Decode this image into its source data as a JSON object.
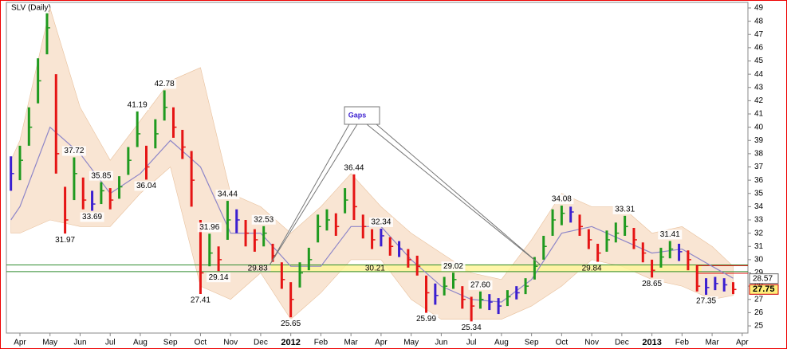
{
  "chart_data": {
    "type": "ohlc",
    "title": "SLV (Daily)",
    "xlim": [
      -0.45,
      24.19
    ],
    "ylim": [
      24.46,
      49.42
    ],
    "yticks": [
      25,
      26,
      27,
      28,
      29,
      30,
      31,
      32,
      33,
      34,
      35,
      36,
      37,
      38,
      39,
      40,
      41,
      42,
      43,
      44,
      45,
      46,
      47,
      48,
      49
    ],
    "xticks": [
      {
        "value": 0,
        "label": "Apr"
      },
      {
        "value": 1,
        "label": "May"
      },
      {
        "value": 2,
        "label": "Jun"
      },
      {
        "value": 3,
        "label": "Jul"
      },
      {
        "value": 4,
        "label": "Aug"
      },
      {
        "value": 5,
        "label": "Sep"
      },
      {
        "value": 6,
        "label": "Oct"
      },
      {
        "value": 7,
        "label": "Nov"
      },
      {
        "value": 8,
        "label": "Dec"
      },
      {
        "value": 9,
        "label": "2012"
      },
      {
        "value": 10,
        "label": "Feb"
      },
      {
        "value": 11,
        "label": "Mar"
      },
      {
        "value": 12,
        "label": "Apr"
      },
      {
        "value": 13,
        "label": "May"
      },
      {
        "value": 14,
        "label": "Jun"
      },
      {
        "value": 15,
        "label": "Jul"
      },
      {
        "value": 16,
        "label": "Aug"
      },
      {
        "value": 17,
        "label": "Sep"
      },
      {
        "value": 18,
        "label": "Oct"
      },
      {
        "value": 19,
        "label": "Nov"
      },
      {
        "value": 20,
        "label": "Dec"
      },
      {
        "value": 21,
        "label": "2013"
      },
      {
        "value": 22,
        "label": "Feb"
      },
      {
        "value": 23,
        "label": "Mar"
      },
      {
        "value": 24,
        "label": "Apr"
      }
    ],
    "up_color": "#1f9a1f",
    "down_color": "#e51414",
    "flat_color": "#3b1fd0",
    "bars": {
      "x": [
        -0.3,
        0,
        0.3,
        0.6,
        0.9,
        1.2,
        1.5,
        1.8,
        2.1,
        2.4,
        2.7,
        3.0,
        3.3,
        3.6,
        3.9,
        4.2,
        4.5,
        4.8,
        5.1,
        5.4,
        5.7,
        6.0,
        6.3,
        6.6,
        6.9,
        7.2,
        7.5,
        7.8,
        8.1,
        8.4,
        8.7,
        9.0,
        9.3,
        9.6,
        9.9,
        10.2,
        10.5,
        10.8,
        11.1,
        11.4,
        11.7,
        12.0,
        12.3,
        12.6,
        12.9,
        13.2,
        13.5,
        13.8,
        14.1,
        14.4,
        14.7,
        15.0,
        15.3,
        15.6,
        15.9,
        16.2,
        16.5,
        16.8,
        17.1,
        17.4,
        17.7,
        18.0,
        18.3,
        18.6,
        18.9,
        19.2,
        19.5,
        19.8,
        20.1,
        20.4,
        20.7,
        21.0,
        21.3,
        21.6,
        21.9,
        22.2,
        22.5,
        22.8,
        23.1,
        23.4,
        23.7
      ],
      "high": [
        37.8,
        38.6,
        41.5,
        45.2,
        48.6,
        44,
        35.5,
        37.72,
        36.2,
        35.2,
        35.85,
        35.4,
        36.3,
        38.5,
        41.19,
        38.6,
        40.6,
        42.78,
        41.5,
        39.8,
        38.2,
        33,
        31.96,
        31,
        34.44,
        33.8,
        33,
        32.3,
        32.53,
        31.2,
        29.8,
        28.3,
        29.8,
        30.9,
        33.4,
        33.8,
        33.5,
        35.4,
        36.44,
        33.4,
        32.3,
        32.34,
        31.7,
        31.4,
        30.8,
        30.3,
        28.8,
        28.2,
        28.7,
        29.02,
        28,
        27.2,
        27.6,
        27.4,
        27.1,
        27.7,
        28,
        28.6,
        30.2,
        31.8,
        33.8,
        34.08,
        34,
        33.4,
        32.3,
        31.2,
        32.2,
        32.8,
        33.31,
        32.4,
        31.3,
        30,
        30.9,
        31.41,
        31.2,
        30.7,
        29.6,
        28.6,
        28.7,
        28.6,
        28.3
      ],
      "low": [
        35.2,
        36.0,
        38.6,
        41.8,
        45.5,
        36.5,
        31.97,
        34.5,
        33.8,
        33.69,
        34.2,
        33.8,
        34.6,
        36.4,
        38.5,
        36.04,
        38.4,
        40.5,
        39.2,
        37.6,
        34,
        27.41,
        29.5,
        29.14,
        31.5,
        32,
        31,
        30.6,
        31,
        29.83,
        27.8,
        25.65,
        27.9,
        29.2,
        31.3,
        32.2,
        31.8,
        33.5,
        33,
        31.6,
        30.8,
        31,
        30.3,
        30.2,
        29.4,
        28.8,
        25.99,
        26.6,
        27.3,
        27.8,
        26.3,
        25.34,
        26.3,
        26.2,
        25.9,
        26.5,
        27,
        27.4,
        28.5,
        30,
        31.8,
        32.6,
        32.8,
        31.8,
        30.8,
        29.84,
        30.6,
        31.3,
        31.8,
        30.8,
        29.8,
        28.65,
        29.4,
        30.1,
        29.9,
        29.2,
        27.6,
        27.35,
        27.7,
        27.6,
        27.4
      ],
      "close": [
        36.5,
        37.5,
        40,
        43.5,
        47.5,
        38,
        33,
        36.5,
        34.5,
        34.2,
        35.2,
        34.5,
        35.5,
        37.5,
        39.5,
        37,
        39.5,
        41.5,
        40,
        38.5,
        36,
        29,
        30.5,
        30,
        33,
        33,
        32,
        31.5,
        32,
        30.3,
        28.5,
        27,
        29,
        30,
        32.5,
        33,
        32.5,
        34.5,
        34,
        32.5,
        31.5,
        31.8,
        31,
        30.8,
        30,
        29.5,
        27.5,
        27.3,
        28,
        28.5,
        27,
        26.5,
        27,
        26.8,
        26.5,
        27.2,
        27.5,
        28,
        29.5,
        31,
        33,
        33.5,
        33.6,
        32.5,
        31.5,
        30.5,
        31.5,
        32,
        32.5,
        31.5,
        30.5,
        29.2,
        30.2,
        30.8,
        30.6,
        30,
        28,
        27.9,
        28.2,
        28.1,
        27.75
      ]
    },
    "indicators": {
      "x": [
        -0.3,
        0,
        1,
        2,
        3,
        4,
        5,
        6,
        7,
        8,
        9,
        10,
        11,
        12,
        13,
        14,
        15,
        16,
        17,
        18,
        19,
        20,
        21,
        22,
        23,
        23.7
      ],
      "ma": [
        33,
        34,
        40,
        38,
        35,
        36.5,
        39,
        37,
        32,
        32,
        29.5,
        29.5,
        32.5,
        32.5,
        30,
        28,
        27,
        26.8,
        28.5,
        32,
        32.5,
        31.5,
        30.5,
        30.8,
        29.5,
        28.6
      ],
      "upper": [
        37.5,
        39,
        49,
        41.5,
        37.5,
        40.5,
        43.5,
        44.5,
        35,
        34,
        32,
        34,
        36.5,
        34,
        32,
        30.5,
        29,
        28.5,
        31.5,
        35,
        34,
        34,
        32,
        32.5,
        31,
        29.5
      ],
      "lower": [
        32,
        32,
        33,
        32.5,
        32.5,
        35,
        37,
        28,
        27,
        29,
        25.5,
        27.5,
        30,
        30,
        27,
        25.5,
        25.5,
        25.5,
        26.5,
        28,
        30,
        29.5,
        28.5,
        28,
        27,
        27.3
      ],
      "ma_color": "#8e86c8",
      "band_color": "#f7dcc4"
    },
    "annotations": [
      {
        "value": 31.97,
        "label": "31.97",
        "x": 1.5
      },
      {
        "value": 37.72,
        "label": "37.72",
        "x": 1.8
      },
      {
        "value": 35.85,
        "label": "35.85",
        "x": 2.7
      },
      {
        "value": 33.69,
        "label": "33.69",
        "x": 2.4
      },
      {
        "value": 41.19,
        "label": "41.19",
        "x": 3.9
      },
      {
        "value": 36.04,
        "label": "36.04",
        "x": 4.2
      },
      {
        "value": 42.78,
        "label": "42.78",
        "x": 4.8
      },
      {
        "value": 27.41,
        "label": "27.41",
        "x": 6.0
      },
      {
        "value": 31.96,
        "label": "31.96",
        "x": 6.3
      },
      {
        "value": 29.14,
        "label": "29.14",
        "x": 6.6
      },
      {
        "value": 34.44,
        "label": "34.44",
        "x": 6.9
      },
      {
        "value": 32.53,
        "label": "32.53",
        "x": 8.1
      },
      {
        "value": 25.65,
        "label": "25.65",
        "x": 9.0
      },
      {
        "value": 36.44,
        "label": "36.44",
        "x": 11.1
      },
      {
        "value": 32.34,
        "label": "32.34",
        "x": 12.0
      },
      {
        "value": 25.99,
        "label": "25.99",
        "x": 13.5
      },
      {
        "value": 29.02,
        "label": "29.02",
        "x": 14.4
      },
      {
        "value": 25.34,
        "label": "25.34",
        "x": 15.0
      },
      {
        "value": 27.6,
        "label": "27.60",
        "x": 15.3
      },
      {
        "value": 34.08,
        "label": "34.08",
        "x": 18.0
      },
      {
        "value": 33.31,
        "label": "33.31",
        "x": 20.1
      },
      {
        "value": 28.65,
        "label": "28.65",
        "x": 21.0
      },
      {
        "value": 31.41,
        "label": "31.41",
        "x": 21.6
      },
      {
        "value": 27.35,
        "label": "27.35",
        "x": 22.8
      }
    ],
    "zone": {
      "low": 29.05,
      "high": 29.65,
      "x": [
        8.34,
        22.65
      ],
      "color": "#fff59a",
      "labels": [
        {
          "value": 29.83,
          "label": "29.83",
          "x": 7.9
        },
        {
          "value": 30.21,
          "label": "30.21",
          "x": 11.8
        },
        {
          "value": 29.84,
          "label": "29.84",
          "x": 19.0
        }
      ]
    },
    "levels": [
      {
        "value": 29.6,
        "color": "#2e8b2e",
        "from": -0.45
      },
      {
        "value": 29.1,
        "color": "#2e8b2e",
        "from": -0.45
      },
      {
        "value": 29.55,
        "color": "#e51414",
        "from": 22.5
      },
      {
        "value": 28.97,
        "color": "#e51414",
        "from": 22.5
      }
    ],
    "callout": {
      "text": "Gaps",
      "points": [
        {
          "x": 8.3,
          "y": 29.6
        },
        {
          "x": 17.3,
          "y": 29.6
        }
      ]
    },
    "price_tags": [
      {
        "value": 28.57,
        "label": "28.57",
        "highlight": false
      },
      {
        "value": 27.75,
        "label": "27.75",
        "highlight": true
      }
    ]
  }
}
